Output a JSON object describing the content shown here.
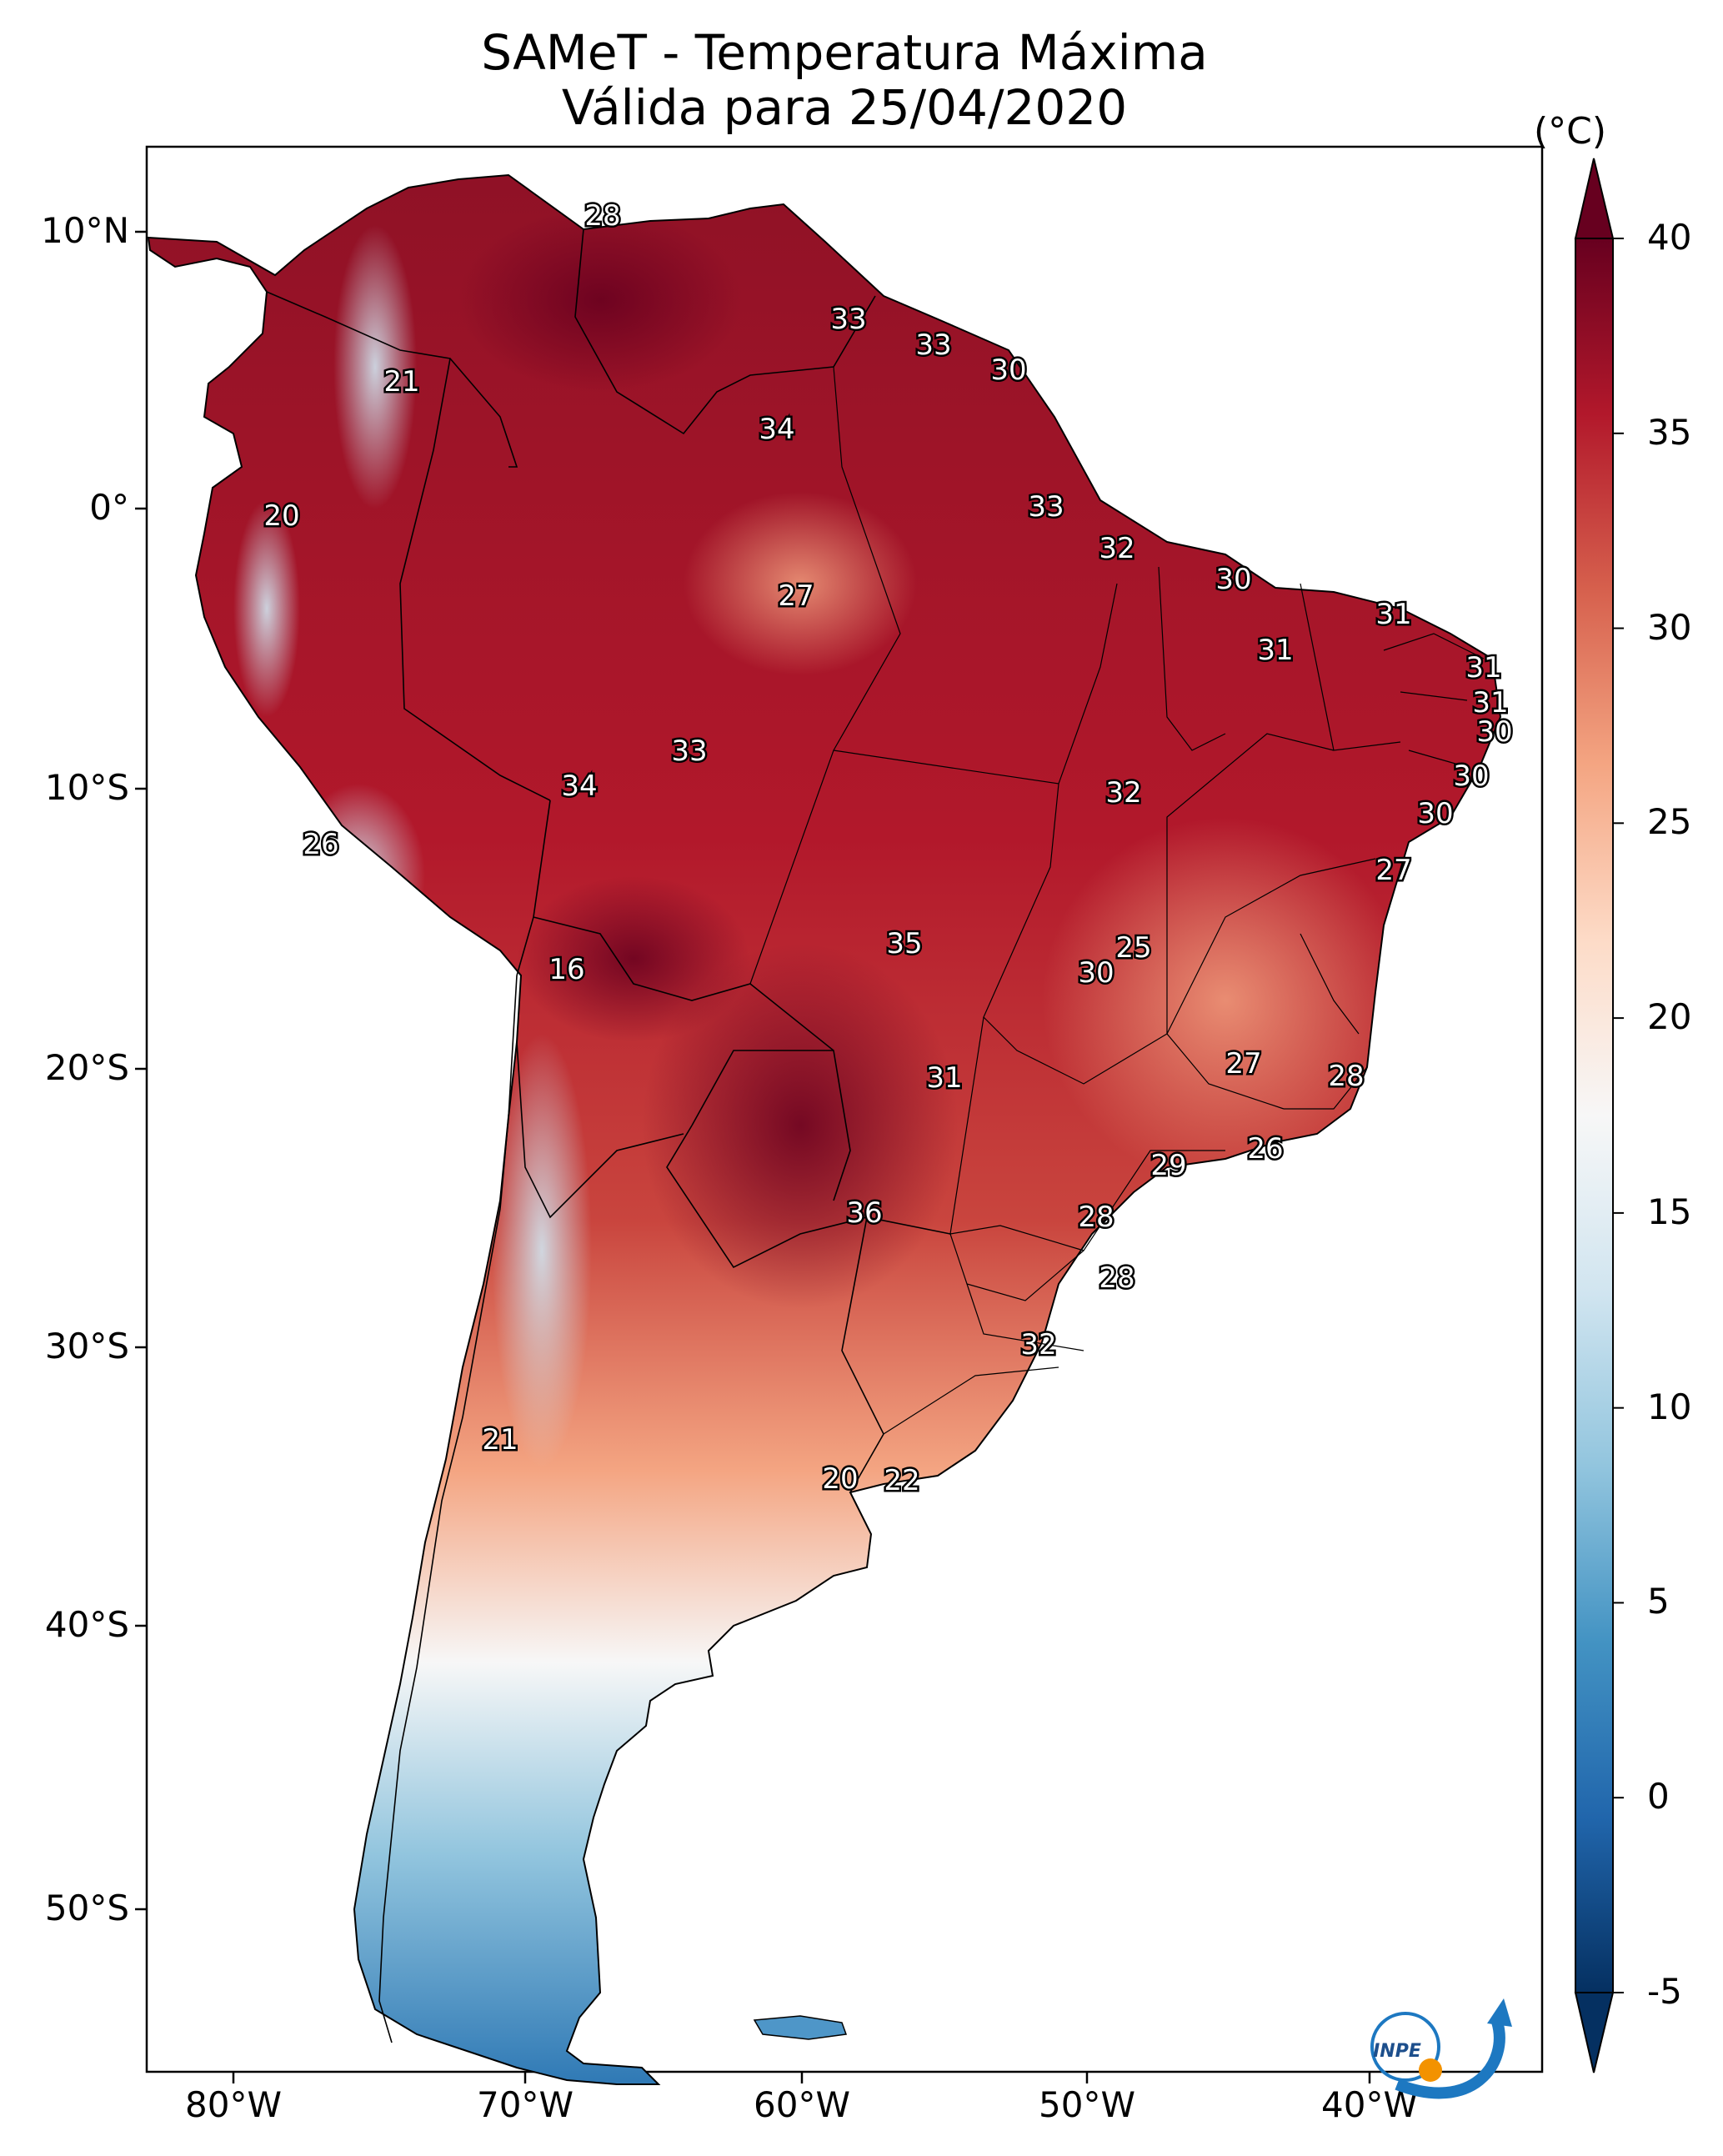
{
  "title_line1": "SAMeT - Temperatura Máxima",
  "title_line2": "Válida para 25/04/2020",
  "colorbar": {
    "unit": "(°C)",
    "ticks": [
      "40",
      "35",
      "30",
      "25",
      "20",
      "15",
      "10",
      "5",
      "0",
      "-5"
    ],
    "min": -5,
    "max": 40,
    "stops": [
      "#053061",
      "#2166ac",
      "#4393c3",
      "#92c5de",
      "#d1e5f0",
      "#f7f7f7",
      "#fddbc7",
      "#f4a582",
      "#d6604d",
      "#b2182b",
      "#67001f"
    ]
  },
  "axes": {
    "lat_labels": [
      "10°N",
      "0°",
      "10°S",
      "20°S",
      "30°S",
      "40°S",
      "50°S"
    ],
    "lon_labels": [
      "80°W",
      "70°W",
      "60°W",
      "50°W",
      "40°W"
    ]
  },
  "city_values": [
    "28",
    "21",
    "33",
    "33",
    "30",
    "34",
    "20",
    "33",
    "32",
    "30",
    "27",
    "31",
    "31",
    "31",
    "31",
    "30",
    "33",
    "34",
    "30",
    "32",
    "30",
    "26",
    "27",
    "25",
    "16",
    "35",
    "30",
    "27",
    "31",
    "28",
    "26",
    "29",
    "36",
    "28",
    "28",
    "32",
    "21",
    "20",
    "22"
  ],
  "logo_text": "INPE"
}
